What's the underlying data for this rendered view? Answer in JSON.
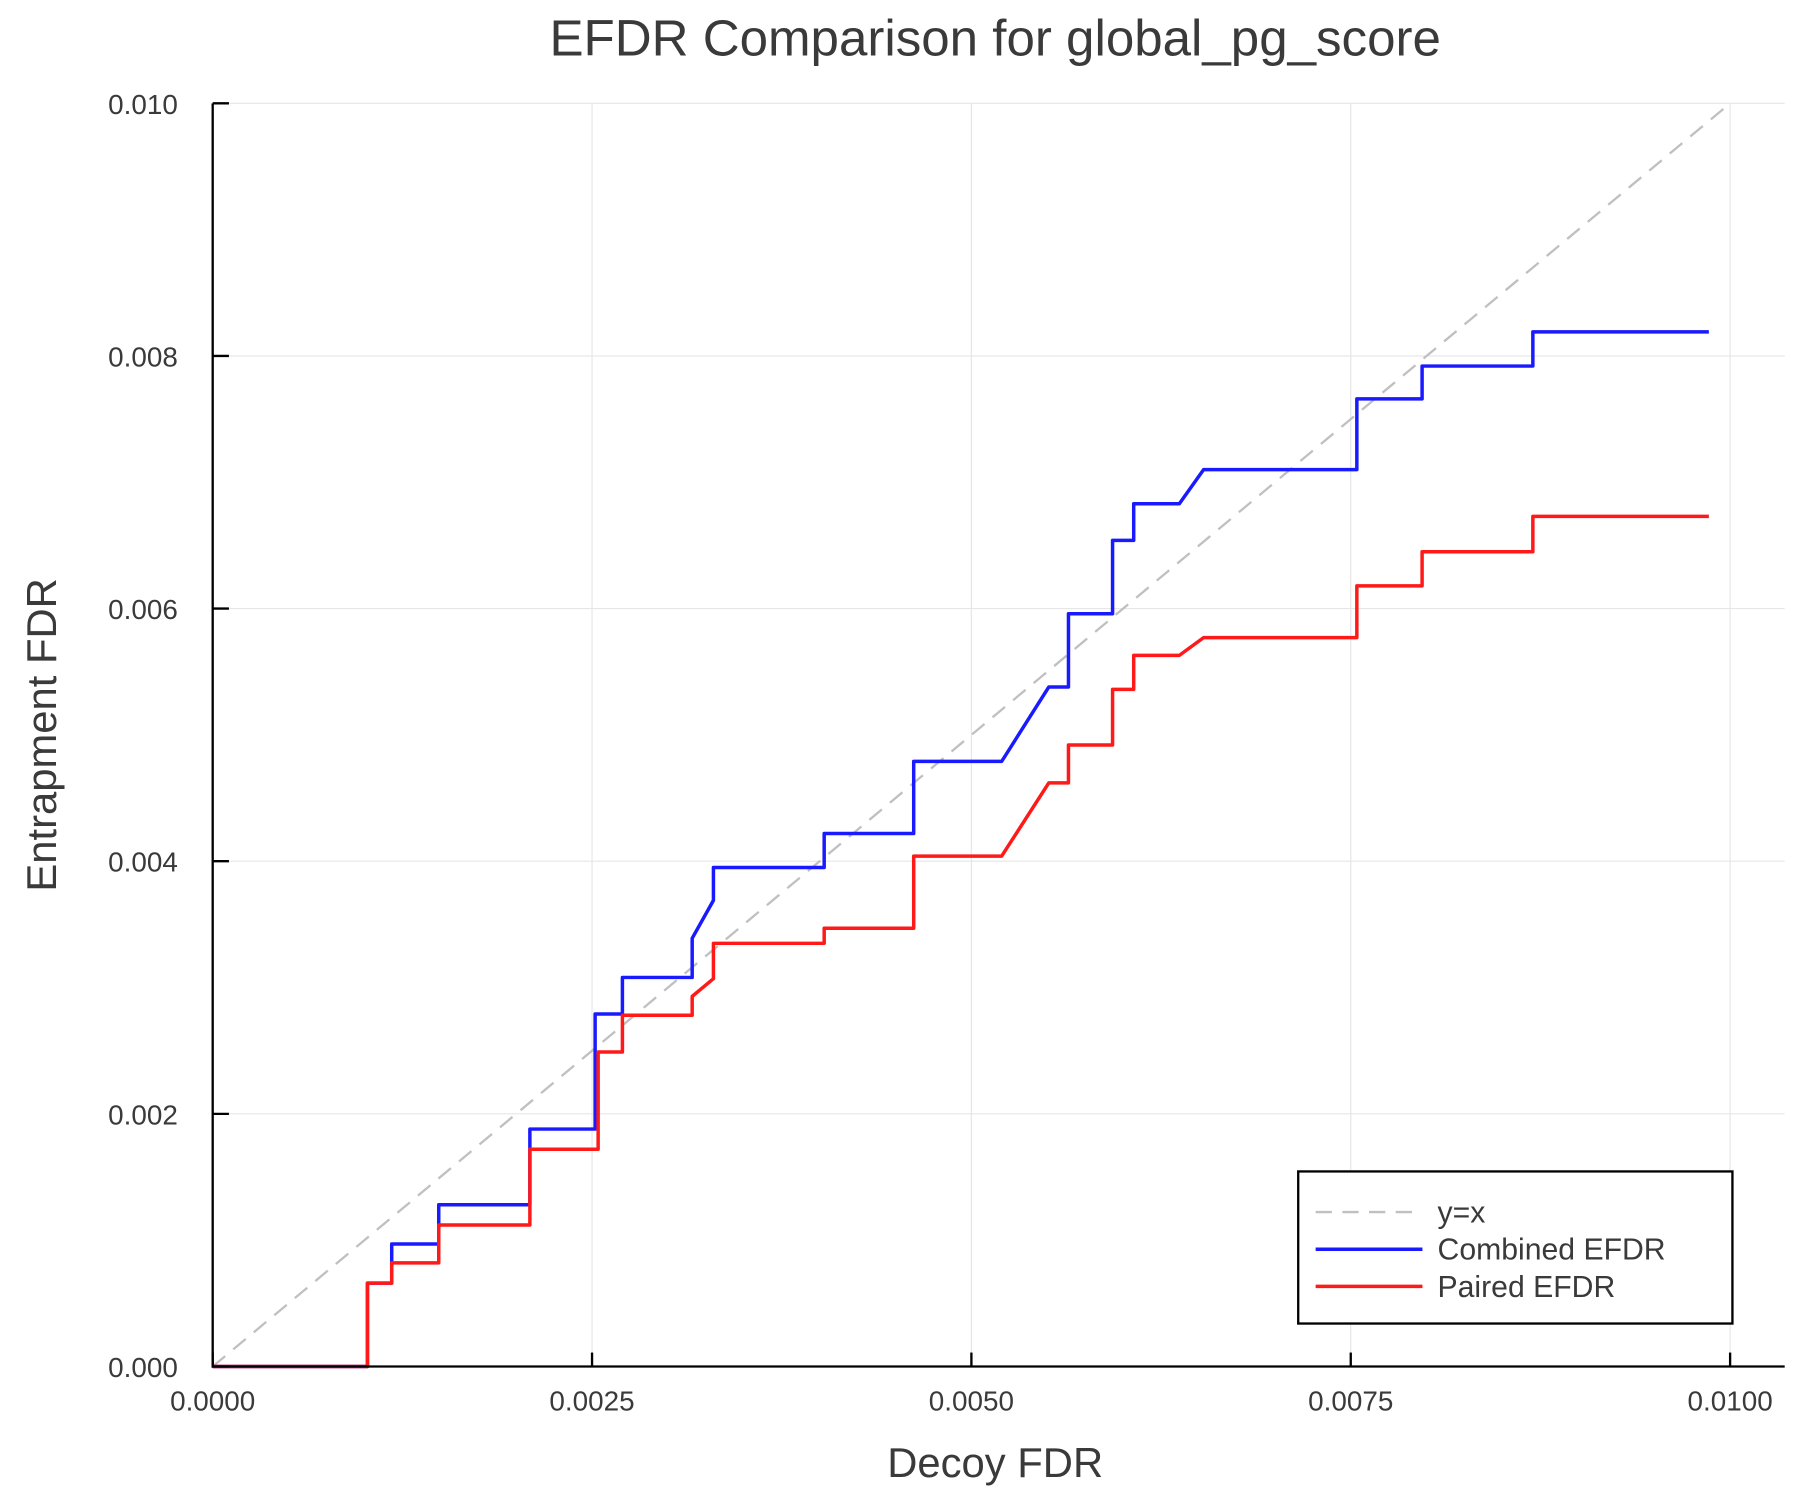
{
  "chart_data": {
    "type": "line",
    "title": "EFDR Comparison for global_pg_score",
    "xlabel": "Decoy FDR",
    "ylabel": "Entrapment FDR",
    "xlim": [
      0,
      0.0104
    ],
    "ylim": [
      0,
      0.01
    ],
    "xticks": [
      0,
      0.0025,
      0.005,
      0.0075,
      0.01
    ],
    "xtick_labels": [
      "0.0000",
      "0.0025",
      "0.0050",
      "0.0075",
      "0.0100"
    ],
    "yticks": [
      0,
      0.002,
      0.004,
      0.006,
      0.008,
      0.01
    ],
    "ytick_labels": [
      "0.000",
      "0.002",
      "0.004",
      "0.006",
      "0.008",
      "0.010"
    ],
    "grid": true,
    "legend_position": "bottom-right",
    "series": [
      {
        "name": "y=x",
        "color": "#c0c0c0",
        "style": "dashed",
        "x": [
          0,
          0.01
        ],
        "y": [
          0,
          0.01
        ]
      },
      {
        "name": "Combined EFDR",
        "color": "#1a1aff",
        "style": "solid",
        "x": [
          0,
          0.00102,
          0.00102,
          0.00118,
          0.00118,
          0.00149,
          0.00149,
          0.00209,
          0.00209,
          0.00252,
          0.00252,
          0.0027,
          0.0027,
          0.00316,
          0.00316,
          0.0033,
          0.0033,
          0.00403,
          0.00403,
          0.00462,
          0.00462,
          0.0052,
          0.00551,
          0.00564,
          0.00564,
          0.00593,
          0.00593,
          0.00607,
          0.00607,
          0.00637,
          0.00653,
          0.00754,
          0.00754,
          0.00797,
          0.00797,
          0.0087,
          0.0087,
          0.00986
        ],
        "y": [
          0,
          0,
          0.00066,
          0.00066,
          0.00097,
          0.00097,
          0.00128,
          0.00128,
          0.00188,
          0.00188,
          0.00279,
          0.00279,
          0.00308,
          0.00308,
          0.00339,
          0.00369,
          0.00395,
          0.00395,
          0.00422,
          0.00422,
          0.00479,
          0.00479,
          0.00538,
          0.00538,
          0.00596,
          0.00596,
          0.00654,
          0.00654,
          0.00683,
          0.00683,
          0.0071,
          0.0071,
          0.00766,
          0.00766,
          0.00792,
          0.00792,
          0.00819,
          0.00819
        ]
      },
      {
        "name": "Paired EFDR",
        "color": "#ff1a1a",
        "style": "solid",
        "x": [
          0,
          0.00102,
          0.00102,
          0.00118,
          0.00118,
          0.00149,
          0.00149,
          0.00209,
          0.00209,
          0.00254,
          0.00254,
          0.0027,
          0.0027,
          0.00316,
          0.00316,
          0.0033,
          0.0033,
          0.00403,
          0.00403,
          0.00462,
          0.00462,
          0.0052,
          0.00551,
          0.00564,
          0.00564,
          0.00593,
          0.00593,
          0.00607,
          0.00607,
          0.00637,
          0.00653,
          0.00754,
          0.00754,
          0.00797,
          0.00797,
          0.0087,
          0.0087,
          0.00986
        ],
        "y": [
          0,
          0,
          0.00066,
          0.00066,
          0.00082,
          0.00082,
          0.00112,
          0.00112,
          0.00172,
          0.00172,
          0.00249,
          0.00249,
          0.00278,
          0.00278,
          0.00293,
          0.00307,
          0.00335,
          0.00335,
          0.00347,
          0.00347,
          0.00404,
          0.00404,
          0.00462,
          0.00462,
          0.00492,
          0.00492,
          0.00536,
          0.00536,
          0.00563,
          0.00563,
          0.00577,
          0.00577,
          0.00618,
          0.00618,
          0.00645,
          0.00645,
          0.00673,
          0.00673
        ]
      }
    ]
  }
}
